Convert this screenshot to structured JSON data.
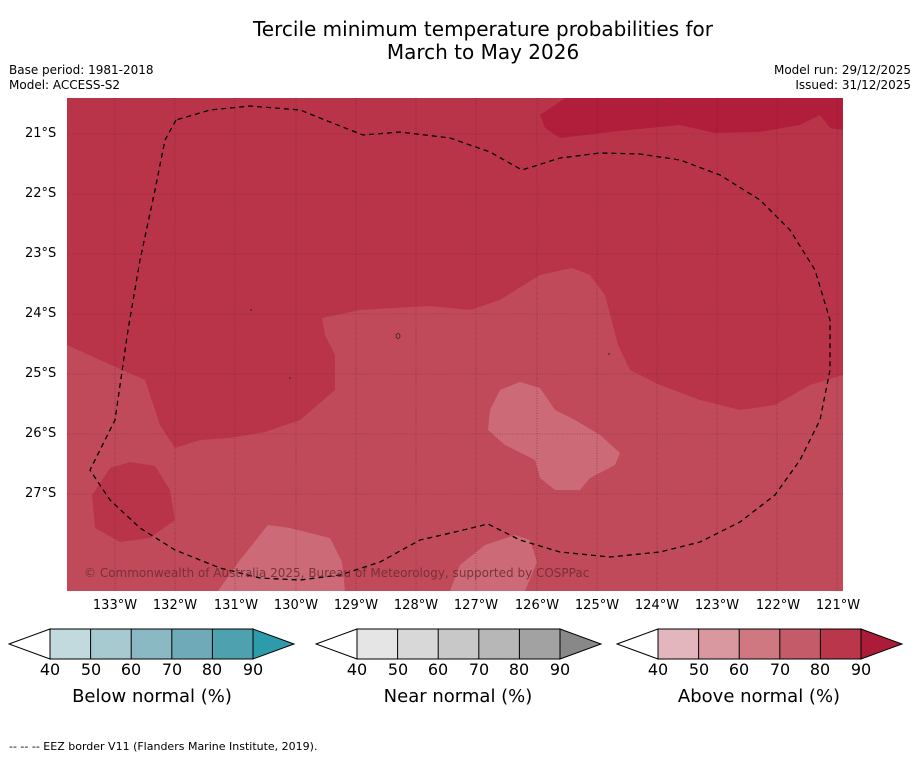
{
  "header": {
    "title_line1": "Tercile minimum temperature probabilities for",
    "title_line2": "March to May 2026",
    "base_period": "Base period: 1981-2018",
    "model": "Model: ACCESS-S2",
    "model_run": "Model run: 29/12/2025",
    "issued": "Issued: 31/12/2025"
  },
  "map": {
    "lat_labels": [
      "21°S",
      "22°S",
      "23°S",
      "24°S",
      "25°S",
      "26°S",
      "27°S"
    ],
    "lon_labels": [
      "133°W",
      "132°W",
      "131°W",
      "130°W",
      "129°W",
      "128°W",
      "127°W",
      "126°W",
      "125°W",
      "124°W",
      "123°W",
      "122°W",
      "121°W"
    ],
    "copyright": "© Commonwealth of Australia 2025, Bureau of Meteorology, supported by COSPPac",
    "border_style": "dashed"
  },
  "colorbars": {
    "ticks": [
      "40",
      "50",
      "60",
      "70",
      "80",
      "90"
    ],
    "below": {
      "title": "Below normal (%)",
      "colors": [
        "#c2d9de",
        "#a7c9d0",
        "#8bb9c3",
        "#6eaab7",
        "#4ea2b0",
        "#2e9bab"
      ]
    },
    "near": {
      "title": "Near normal (%)",
      "colors": [
        "#e5e5e5",
        "#d8d8d8",
        "#c8c8c8",
        "#b7b7b7",
        "#a2a2a2",
        "#888888"
      ]
    },
    "above": {
      "title": "Above normal (%)",
      "colors": [
        "#e3b6bd",
        "#d9979f",
        "#cf7881",
        "#c35c68",
        "#b9364b",
        "#ab1c38"
      ]
    }
  },
  "footnote": "--  --  -- EEZ border V11 (Flanders Marine Institute, 2019)."
}
